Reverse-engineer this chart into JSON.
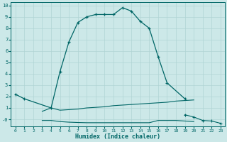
{
  "xlabel": "Humidex (Indice chaleur)",
  "background_color": "#cce8e8",
  "grid_color": "#b0d4d4",
  "line_color": "#006666",
  "xlim": [
    -0.5,
    23.5
  ],
  "ylim": [
    -0.6,
    10.3
  ],
  "yticks": [
    0,
    1,
    2,
    3,
    4,
    5,
    6,
    7,
    8,
    9,
    10
  ],
  "ytick_labels": [
    "-0",
    "1",
    "2",
    "3",
    "4",
    "5",
    "6",
    "7",
    "8",
    "9",
    "10"
  ],
  "xticks": [
    0,
    1,
    2,
    3,
    4,
    5,
    6,
    7,
    8,
    9,
    10,
    11,
    12,
    13,
    14,
    15,
    16,
    17,
    18,
    19,
    20,
    21,
    22,
    23
  ],
  "series_main_x": [
    0,
    1,
    4,
    5,
    6,
    7,
    8,
    9,
    10,
    11,
    12,
    13,
    14,
    15,
    16,
    17,
    19
  ],
  "series_main_y": [
    2.2,
    1.8,
    1.0,
    4.2,
    6.8,
    8.5,
    9.0,
    9.2,
    9.2,
    9.2,
    9.8,
    9.5,
    8.6,
    8.0,
    5.5,
    3.2,
    1.8
  ],
  "series_flat1_x": [
    3,
    4,
    5,
    6,
    7,
    8,
    9,
    10,
    11,
    12,
    13,
    14,
    15,
    16,
    17,
    18,
    19,
    20
  ],
  "series_flat1_y": [
    0.7,
    1.0,
    0.8,
    0.85,
    0.9,
    1.0,
    1.05,
    1.1,
    1.2,
    1.25,
    1.3,
    1.35,
    1.4,
    1.45,
    1.5,
    1.6,
    1.65,
    1.7
  ],
  "series_flat2_x": [
    3,
    4,
    5,
    6,
    7,
    8,
    9,
    10,
    11,
    12,
    13,
    14,
    15,
    16,
    17,
    18,
    19,
    20
  ],
  "series_flat2_y": [
    -0.1,
    -0.1,
    -0.2,
    -0.25,
    -0.28,
    -0.3,
    -0.3,
    -0.3,
    -0.3,
    -0.3,
    -0.3,
    -0.3,
    -0.3,
    -0.1,
    -0.1,
    -0.1,
    -0.15,
    -0.2
  ],
  "series_bottom_x": [
    19,
    20,
    21,
    22,
    23
  ],
  "series_bottom_y": [
    0.4,
    0.2,
    -0.1,
    -0.15,
    -0.35
  ]
}
